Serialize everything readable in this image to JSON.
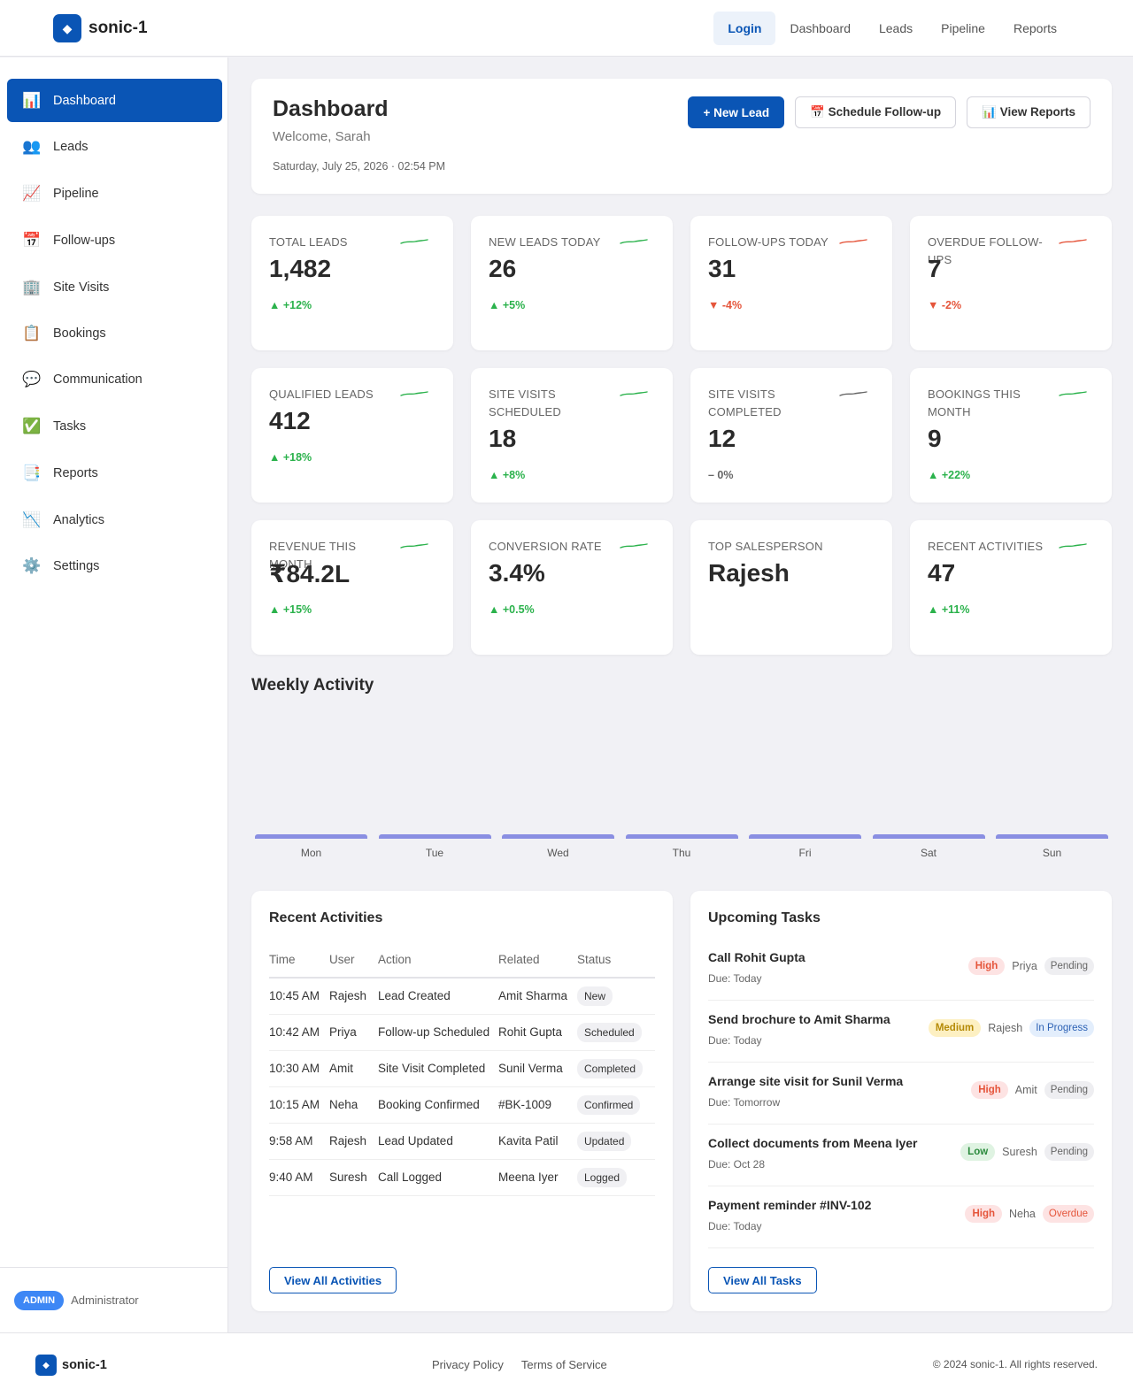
{
  "header": {
    "brand": "sonic-1",
    "logo_glyph": "◆",
    "nav": [
      "Login",
      "Dashboard",
      "Leads",
      "Pipeline",
      "Reports"
    ]
  },
  "sidebar": {
    "items": [
      {
        "icon": "📊",
        "label": "Dashboard"
      },
      {
        "icon": "👥",
        "label": "Leads"
      },
      {
        "icon": "📈",
        "label": "Pipeline"
      },
      {
        "icon": "📅",
        "label": "Follow-ups"
      },
      {
        "icon": "🏢",
        "label": "Site Visits"
      },
      {
        "icon": "📋",
        "label": "Bookings"
      },
      {
        "icon": "💬",
        "label": "Communication"
      },
      {
        "icon": "✅",
        "label": "Tasks"
      },
      {
        "icon": "📑",
        "label": "Reports"
      },
      {
        "icon": "📉",
        "label": "Analytics"
      },
      {
        "icon": "⚙️",
        "label": "Settings"
      }
    ],
    "role_badge": "ADMIN",
    "role_label": "Administrator"
  },
  "hero": {
    "title": "Dashboard",
    "welcome": "Welcome, Sarah",
    "date": "Saturday, July 25, 2026 · 02:54 PM",
    "actions": [
      "+ New Lead",
      "📅 Schedule Follow-up",
      "📊 View Reports"
    ]
  },
  "stats": [
    {
      "label": "TOTAL LEADS",
      "value": "1,482",
      "change": "▲ +12%",
      "trend": "up"
    },
    {
      "label": "NEW LEADS TODAY",
      "value": "26",
      "change": "▲ +5%",
      "trend": "up"
    },
    {
      "label": "FOLLOW-UPS TODAY",
      "value": "31",
      "change": "▼ -4%",
      "trend": "down"
    },
    {
      "label": "OVERDUE FOLLOW-UPS",
      "value": "7",
      "change": "▼ -2%",
      "trend": "down"
    },
    {
      "label": "QUALIFIED LEADS",
      "value": "412",
      "change": "▲ +18%",
      "trend": "up"
    },
    {
      "label": "SITE VISITS SCHEDULED",
      "value": "18",
      "change": "▲ +8%",
      "trend": "up"
    },
    {
      "label": "SITE VISITS COMPLETED",
      "value": "12",
      "change": "– 0%",
      "trend": "flat"
    },
    {
      "label": "BOOKINGS THIS MONTH",
      "value": "9",
      "change": "▲ +22%",
      "trend": "up"
    },
    {
      "label": "REVENUE THIS MONTH",
      "value": "₹84.2L",
      "change": "▲ +15%",
      "trend": "up"
    },
    {
      "label": "CONVERSION RATE",
      "value": "3.4%",
      "change": "▲ +0.5%",
      "trend": "up"
    },
    {
      "label": "TOP SALESPERSON",
      "value": "Rajesh",
      "change": "",
      "trend": "none"
    },
    {
      "label": "RECENT ACTIVITIES",
      "value": "47",
      "change": "▲ +11%",
      "trend": "up"
    }
  ],
  "colors": {
    "up": "#2bb24c",
    "down": "#e5553b",
    "flat": "#666666",
    "accent": "#0a55b5",
    "bar": "#8a8fe2"
  },
  "weekly": {
    "title": "Weekly Activity",
    "days": [
      "Mon",
      "Tue",
      "Wed",
      "Thu",
      "Fri",
      "Sat",
      "Sun"
    ]
  },
  "activities": {
    "title": "Recent Activities",
    "columns": [
      "Time",
      "User",
      "Action",
      "Related",
      "Status"
    ],
    "rows": [
      [
        "10:45 AM",
        "Rajesh",
        "Lead Created",
        "Amit Sharma",
        "New"
      ],
      [
        "10:42 AM",
        "Priya",
        "Follow-up Scheduled",
        "Rohit Gupta",
        "Scheduled"
      ],
      [
        "10:30 AM",
        "Amit",
        "Site Visit Completed",
        "Sunil Verma",
        "Completed"
      ],
      [
        "10:15 AM",
        "Neha",
        "Booking Confirmed",
        "#BK-1009",
        "Confirmed"
      ],
      [
        "9:58 AM",
        "Rajesh",
        "Lead Updated",
        "Kavita Patil",
        "Updated"
      ],
      [
        "9:40 AM",
        "Suresh",
        "Call Logged",
        "Meena Iyer",
        "Logged"
      ]
    ],
    "button": "View All Activities"
  },
  "tasks": {
    "title": "Upcoming Tasks",
    "items": [
      {
        "title": "Call Rohit Gupta",
        "due": "Due: Today",
        "priority": "High",
        "assignee": "Priya",
        "status": "Pending"
      },
      {
        "title": "Send brochure to Amit Sharma",
        "due": "Due: Today",
        "priority": "Medium",
        "assignee": "Rajesh",
        "status": "In Progress"
      },
      {
        "title": "Arrange site visit for Sunil Verma",
        "due": "Due: Tomorrow",
        "priority": "High",
        "assignee": "Amit",
        "status": "Pending"
      },
      {
        "title": "Collect documents from Meena Iyer",
        "due": "Due: Oct 28",
        "priority": "Low",
        "assignee": "Suresh",
        "status": "Pending"
      },
      {
        "title": "Payment reminder #INV-102",
        "due": "Due: Today",
        "priority": "High",
        "assignee": "Neha",
        "status": "Overdue"
      }
    ],
    "button": "View All Tasks"
  },
  "footer": {
    "brand": "sonic-1",
    "links": [
      "Privacy Policy",
      "Terms of Service"
    ],
    "copyright": "© 2024 sonic-1. All rights reserved."
  }
}
